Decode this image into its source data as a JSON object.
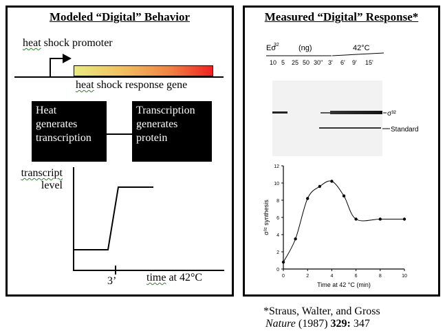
{
  "left": {
    "title": "Modeled “Digital” Behavior",
    "promoter_label_word": "heat",
    "promoter_label_rest": " shock promoter",
    "gene_label_word": "heat",
    "gene_label_rest": " shock response gene",
    "box1_lines": [
      "Heat",
      "generates",
      "transcription"
    ],
    "box2_lines": [
      "Transcription",
      "generates",
      "protein"
    ],
    "y_label_line1": "transcript",
    "y_label_line2": "level",
    "tick_label": "3’",
    "x_label_word": "time",
    "x_label_rest": " at 42°C",
    "gene_gradient": [
      "#e8ea80",
      "#f02020"
    ]
  },
  "right": {
    "title": "Measured “Digital” Response*",
    "gel": {
      "header_left": "Eσ",
      "header_sup": "32",
      "header_units": "(ng)",
      "header_temp": "42°C",
      "lane_labels": [
        "10",
        "5",
        "25",
        "50",
        "30\"",
        "3'",
        "6'",
        "9'",
        "15'"
      ],
      "band_labels": [
        "σ³²",
        "Standard"
      ]
    },
    "plot": {
      "ylabel": "σ³² synthesis",
      "xlabel": "Time at 42 °C (min)",
      "y_ticks": [
        "0",
        "2",
        "4",
        "6",
        "8",
        "10",
        "12"
      ],
      "x_ticks": [
        "0",
        "2",
        "4",
        "6",
        "8",
        "10"
      ]
    }
  },
  "citation": {
    "line1": "*Straus, Walter, and Gross",
    "journal": "Nature",
    "year": " (1987) ",
    "volume": "329:",
    "page": " 347"
  },
  "chart_data": {
    "type": "scatter",
    "x": [
      0,
      1,
      2,
      3,
      4,
      5,
      6,
      8,
      10
    ],
    "y": [
      0.8,
      3.5,
      8.2,
      9.6,
      10.2,
      8.5,
      5.8,
      5.8,
      5.8
    ],
    "xlabel": "Time at 42 °C (min)",
    "ylabel": "σ³² synthesis",
    "xlim": [
      0,
      10
    ],
    "ylim": [
      0,
      12
    ]
  }
}
